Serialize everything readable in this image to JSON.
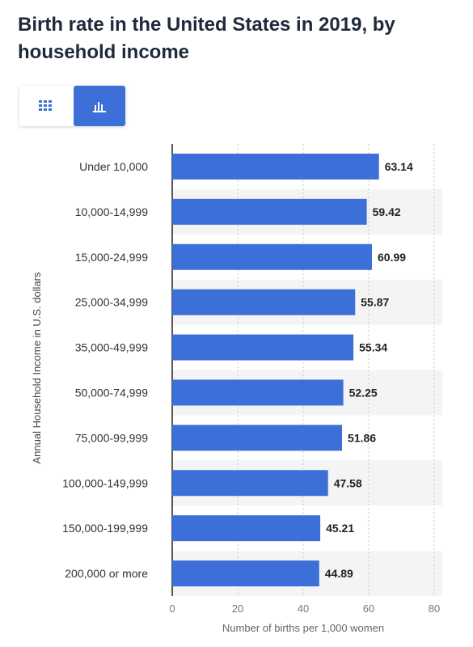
{
  "title": "Birth rate in the United States in 2019, by household income",
  "view_toggle": {
    "table_icon": "grid-table-icon",
    "chart_icon": "bar-chart-icon",
    "active": "chart"
  },
  "colors": {
    "bar": "#3d6fd8",
    "accent": "#3d6fd8",
    "stripe": "#f4f4f4",
    "grid": "#c8c8c8",
    "axis": "#222222"
  },
  "chart_data": {
    "type": "bar",
    "orientation": "horizontal",
    "categories": [
      "Under 10,000",
      "10,000-14,999",
      "15,000-24,999",
      "25,000-34,999",
      "35,000-49,999",
      "50,000-74,999",
      "75,000-99,999",
      "100,000-149,999",
      "150,000-199,999",
      "200,000 or more"
    ],
    "values": [
      63.14,
      59.42,
      60.99,
      55.87,
      55.34,
      52.25,
      51.86,
      47.58,
      45.21,
      44.89
    ],
    "value_labels": [
      "63.14",
      "59.42",
      "60.99",
      "55.87",
      "55.34",
      "52.25",
      "51.86",
      "47.58",
      "45.21",
      "44.89"
    ],
    "xlabel": "Number of births per 1,000 women",
    "ylabel": "Annual Household Income in U.S. dollars",
    "xlim": [
      0,
      80
    ],
    "xticks": [
      0,
      20,
      40,
      60,
      80
    ],
    "grid": true,
    "legend": "none"
  }
}
